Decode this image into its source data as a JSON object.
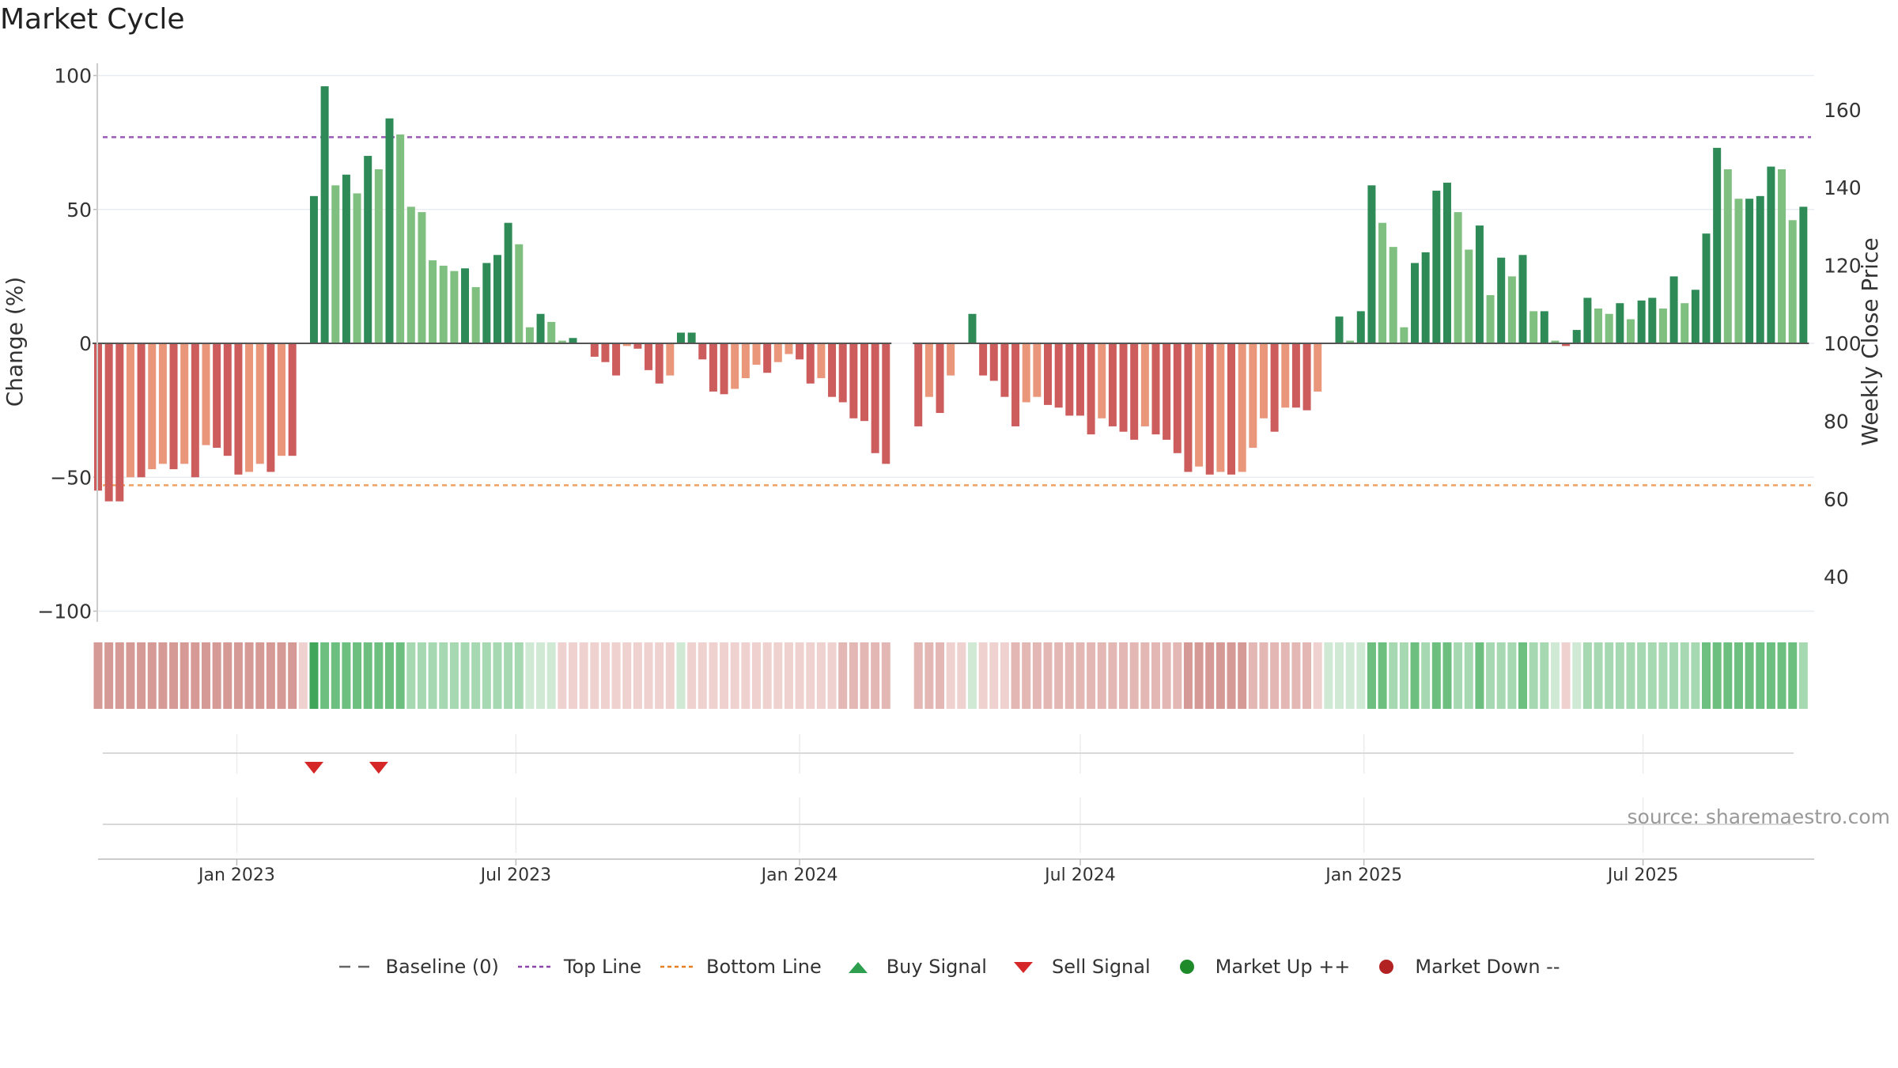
{
  "page": {
    "title": "Market Cycle",
    "source_text": "source: sharemaestro.com"
  },
  "legend": [
    {
      "label": "Baseline (0)",
      "kind": "dash-line",
      "color": "#666666"
    },
    {
      "label": "Top Line",
      "kind": "dotted-line",
      "color": "#8e44ad"
    },
    {
      "label": "Bottom Line",
      "kind": "dotted-line",
      "color": "#e67e22"
    },
    {
      "label": "Buy Signal",
      "kind": "triangle-up",
      "color": "#2e9e4f"
    },
    {
      "label": "Sell Signal",
      "kind": "triangle-down",
      "color": "#d62728"
    },
    {
      "label": "Market Up ++",
      "kind": "circle",
      "color": "#1e8a2a"
    },
    {
      "label": "Market Down --",
      "kind": "circle",
      "color": "#b22222"
    }
  ],
  "chart_data": {
    "type": "bar",
    "title": "Market Cycle",
    "ylabel_left": "Change (%)",
    "ylabel_right": "Weekly Close Price",
    "ylim_left": [
      -100,
      100
    ],
    "yticks_left": [
      -100,
      -50,
      0,
      50,
      100
    ],
    "yticks_left_labels": [
      "−100",
      "−50",
      "0",
      "50",
      "100"
    ],
    "ylim_right": [
      30,
      170
    ],
    "yticks_right": [
      40,
      60,
      80,
      100,
      120,
      140,
      160
    ],
    "x_start": "2022-10-03",
    "x_end": "2025-10-20",
    "x_ticks": [
      "2023-01-01",
      "2023-07-01",
      "2024-01-01",
      "2024-07-01",
      "2025-01-01",
      "2025-07-01"
    ],
    "x_tick_labels": [
      "Jan 2023",
      "Jul 2023",
      "Jan 2024",
      "Jul 2024",
      "Jan 2025",
      "Jul 2025"
    ],
    "top_line": 77,
    "bottom_line": -53,
    "baseline": 0,
    "colors": {
      "strong_up": "#2e8b57",
      "weak_up": "#7fbf7f",
      "strong_down": "#cd5c5c",
      "weak_down": "#e9967a"
    },
    "series_segments": [
      {
        "start": "2022-10-03",
        "end": "2024-03-04",
        "values": [
          -55,
          -59,
          -59,
          -50,
          -50,
          -47,
          -45,
          -47,
          -45,
          -50,
          -38,
          -39,
          -42,
          -49,
          -48,
          -45,
          -48,
          -42,
          -42,
          0,
          55,
          96,
          59,
          63,
          56,
          70,
          65,
          84,
          78,
          51,
          49,
          31,
          29,
          27,
          28,
          21,
          30,
          33,
          45,
          37,
          6,
          11,
          8,
          1,
          2,
          0,
          -5,
          -7,
          -12,
          -1,
          -2,
          -10,
          -15,
          -12,
          4,
          4,
          -6,
          -18,
          -19,
          -17,
          -13,
          -8,
          -11,
          -7,
          -4,
          -6,
          -15,
          -13,
          -20,
          -22,
          -28,
          -29,
          -41,
          -45
        ]
      },
      {
        "start": "2024-03-18",
        "end": "2025-10-20",
        "values": [
          -31,
          -20,
          -26,
          -12,
          0,
          11,
          -12,
          -14,
          -20,
          -31,
          -22,
          -20,
          -23,
          -24,
          -27,
          -27,
          -34,
          -28,
          -31,
          -33,
          -36,
          -31,
          -34,
          -36,
          -41,
          -48,
          -46,
          -49,
          -48,
          -49,
          -48,
          -39,
          -28,
          -33,
          -24,
          -24,
          -25,
          -18,
          0,
          10,
          1,
          12,
          59,
          45,
          36,
          6,
          30,
          34,
          57,
          60,
          49,
          35,
          44,
          18,
          32,
          25,
          33,
          12,
          12,
          1,
          -1,
          5,
          17,
          13,
          11,
          15,
          9,
          16,
          17,
          13,
          25,
          15,
          20,
          41,
          73,
          65,
          54,
          54,
          55,
          66,
          65,
          46,
          51
        ]
      }
    ],
    "color_strip_segments": [
      {
        "start": "2022-10-03",
        "end": "2024-03-04",
        "levels": [
          -3,
          -3,
          -3,
          -3,
          -3,
          -3,
          -3,
          -3,
          -3,
          -3,
          -3,
          -3,
          -3,
          -3,
          -3,
          -3,
          -3,
          -3,
          -3,
          -1,
          4,
          3,
          3,
          3,
          3,
          3,
          3,
          3,
          3,
          2,
          2,
          2,
          2,
          2,
          2,
          2,
          2,
          2,
          2,
          2,
          1,
          1,
          1,
          -1,
          -1,
          -1,
          -1,
          -1,
          -1,
          -1,
          -1,
          -1,
          -1,
          -1,
          1,
          -1,
          -1,
          -1,
          -1,
          -1,
          -1,
          -1,
          -1,
          -1,
          -1,
          -1,
          -1,
          -1,
          -1,
          -2,
          -2,
          -2,
          -2,
          -2
        ]
      },
      {
        "start": "2024-03-18",
        "end": "2025-10-20",
        "levels": [
          -2,
          -2,
          -2,
          -1,
          -1,
          1,
          -1,
          -1,
          -1,
          -2,
          -2,
          -2,
          -2,
          -2,
          -2,
          -2,
          -2,
          -2,
          -2,
          -2,
          -2,
          -2,
          -2,
          -2,
          -2,
          -3,
          -3,
          -3,
          -3,
          -3,
          -3,
          -2,
          -2,
          -2,
          -2,
          -2,
          -2,
          -1,
          1,
          1,
          1,
          1,
          3,
          3,
          2,
          2,
          3,
          2,
          3,
          3,
          2,
          2,
          3,
          2,
          2,
          2,
          3,
          2,
          2,
          1,
          -1,
          1,
          2,
          2,
          2,
          2,
          2,
          2,
          2,
          2,
          2,
          2,
          2,
          3,
          3,
          3,
          3,
          3,
          3,
          3,
          3,
          3,
          2
        ]
      }
    ],
    "signals": [
      {
        "type": "sell",
        "date": "2023-02-20"
      },
      {
        "type": "sell",
        "date": "2023-04-03"
      }
    ]
  }
}
